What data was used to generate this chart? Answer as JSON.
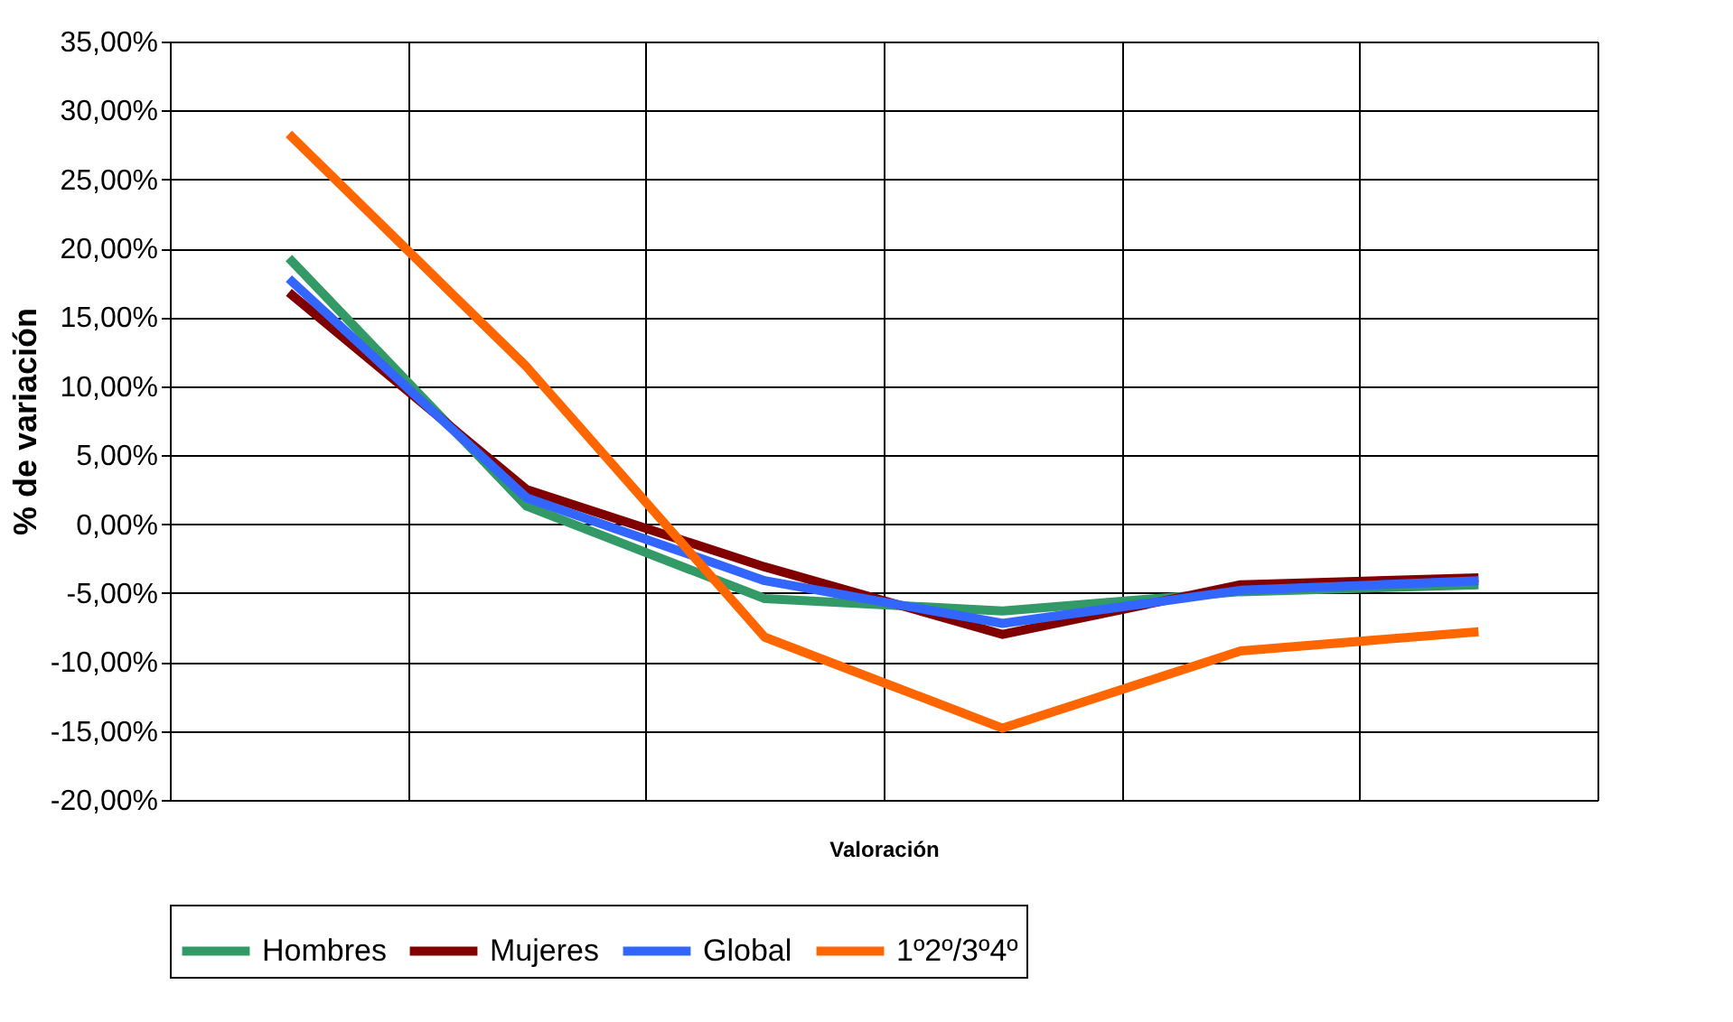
{
  "chart_data": {
    "type": "line",
    "xlabel": "Valoración",
    "ylabel": "% de variación",
    "categories": [
      null,
      null,
      null,
      null,
      null,
      null
    ],
    "series": [
      {
        "name": "Hombres",
        "color": "#339966",
        "values": [
          19.3,
          1.3,
          -5.4,
          -6.3,
          -4.9,
          -4.4
        ]
      },
      {
        "name": "Mujeres",
        "color": "#800000",
        "values": [
          16.8,
          2.5,
          -3.1,
          -8.0,
          -4.4,
          -3.9
        ]
      },
      {
        "name": "Global",
        "color": "#3366ff",
        "values": [
          17.8,
          1.9,
          -4.1,
          -7.2,
          -4.8,
          -4.1
        ]
      },
      {
        "name": "1º2º/3º4º",
        "color": "#ff6600",
        "values": [
          28.3,
          11.4,
          -8.2,
          -14.8,
          -9.2,
          -7.8
        ]
      }
    ],
    "ylim": [
      -20,
      35
    ],
    "yticks": [
      {
        "value": 35,
        "label": "35,00%"
      },
      {
        "value": 30,
        "label": "30,00%"
      },
      {
        "value": 25,
        "label": "25,00%"
      },
      {
        "value": 20,
        "label": "20,00%"
      },
      {
        "value": 15,
        "label": "15,00%"
      },
      {
        "value": 10,
        "label": "10,00%"
      },
      {
        "value": 5,
        "label": "5,00%"
      },
      {
        "value": 0,
        "label": "0,00%"
      },
      {
        "value": -5,
        "label": "-5,00%"
      },
      {
        "value": -10,
        "label": "-10,00%"
      },
      {
        "value": -15,
        "label": "-15,00%"
      },
      {
        "value": -20,
        "label": "-20,00%"
      }
    ],
    "grid": true,
    "legend": "bottom",
    "line_style": "solid",
    "marker": "none"
  }
}
